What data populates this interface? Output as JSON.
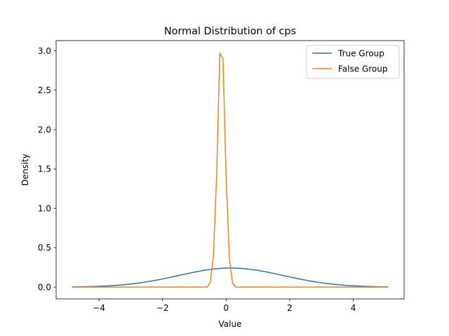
{
  "chart_data": {
    "type": "line",
    "title": "Normal Distribution of cps",
    "xlabel": "Value",
    "ylabel": "Density",
    "xlim": [
      -5.35,
      5.6
    ],
    "ylim": [
      -0.15,
      3.13
    ],
    "x_ticks": [
      -4,
      -2,
      0,
      2,
      4
    ],
    "x_tick_labels": [
      "−4",
      "−2",
      "0",
      "2",
      "4"
    ],
    "y_ticks": [
      0.0,
      0.5,
      1.0,
      1.5,
      2.0,
      2.5,
      3.0
    ],
    "y_tick_labels": [
      "0.0",
      "0.5",
      "1.0",
      "1.5",
      "2.0",
      "2.5",
      "3.0"
    ],
    "legend_position": "top-right",
    "grid": false,
    "series": [
      {
        "name": "True Group",
        "color": "#1f77b4",
        "distribution": "normal",
        "mean": 0.15,
        "std": 1.65,
        "x_range": [
          -4.85,
          5.1
        ],
        "points": 100
      },
      {
        "name": "False Group",
        "color": "#ff7f0e",
        "x": [
          -4.85,
          -0.6,
          -0.5,
          -0.4,
          -0.3,
          -0.2,
          -0.1,
          0.0,
          0.1,
          0.2,
          0.3,
          0.4,
          0.5,
          5.1
        ],
        "y": [
          0.0,
          0.0,
          0.06,
          0.4,
          1.4,
          2.97,
          2.9,
          1.4,
          0.38,
          0.05,
          0.0,
          0.0,
          0.0,
          0.0
        ]
      }
    ]
  }
}
